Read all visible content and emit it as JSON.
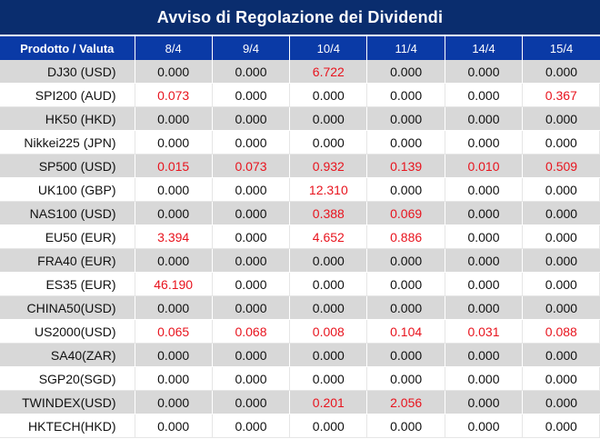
{
  "title": "Avviso di Regolazione dei Dividendi",
  "colors": {
    "title_bg": "#0a2d6e",
    "header_bg": "#0a3aa6",
    "row_alt_bg": "#d8d8d8",
    "positive_value": "#e8141e",
    "zero_value": "#111111"
  },
  "table": {
    "headers": [
      "Prodotto / Valuta",
      "8/4",
      "9/4",
      "10/4",
      "11/4",
      "14/4",
      "15/4"
    ],
    "rows": [
      {
        "product": "DJ30 (USD)",
        "values": [
          "0.000",
          "0.000",
          "6.722",
          "0.000",
          "0.000",
          "0.000"
        ]
      },
      {
        "product": "SPI200 (AUD)",
        "values": [
          "0.073",
          "0.000",
          "0.000",
          "0.000",
          "0.000",
          "0.367"
        ]
      },
      {
        "product": "HK50 (HKD)",
        "values": [
          "0.000",
          "0.000",
          "0.000",
          "0.000",
          "0.000",
          "0.000"
        ]
      },
      {
        "product": "Nikkei225 (JPN)",
        "values": [
          "0.000",
          "0.000",
          "0.000",
          "0.000",
          "0.000",
          "0.000"
        ]
      },
      {
        "product": "SP500 (USD)",
        "values": [
          "0.015",
          "0.073",
          "0.932",
          "0.139",
          "0.010",
          "0.509"
        ]
      },
      {
        "product": "UK100 (GBP)",
        "values": [
          "0.000",
          "0.000",
          "12.310",
          "0.000",
          "0.000",
          "0.000"
        ]
      },
      {
        "product": "NAS100 (USD)",
        "values": [
          "0.000",
          "0.000",
          "0.388",
          "0.069",
          "0.000",
          "0.000"
        ]
      },
      {
        "product": "EU50 (EUR)",
        "values": [
          "3.394",
          "0.000",
          "4.652",
          "0.886",
          "0.000",
          "0.000"
        ]
      },
      {
        "product": "FRA40 (EUR)",
        "values": [
          "0.000",
          "0.000",
          "0.000",
          "0.000",
          "0.000",
          "0.000"
        ]
      },
      {
        "product": "ES35 (EUR)",
        "values": [
          "46.190",
          "0.000",
          "0.000",
          "0.000",
          "0.000",
          "0.000"
        ]
      },
      {
        "product": "CHINA50(USD)",
        "values": [
          "0.000",
          "0.000",
          "0.000",
          "0.000",
          "0.000",
          "0.000"
        ]
      },
      {
        "product": "US2000(USD)",
        "values": [
          "0.065",
          "0.068",
          "0.008",
          "0.104",
          "0.031",
          "0.088"
        ]
      },
      {
        "product": "SA40(ZAR)",
        "values": [
          "0.000",
          "0.000",
          "0.000",
          "0.000",
          "0.000",
          "0.000"
        ]
      },
      {
        "product": "SGP20(SGD)",
        "values": [
          "0.000",
          "0.000",
          "0.000",
          "0.000",
          "0.000",
          "0.000"
        ]
      },
      {
        "product": "TWINDEX(USD)",
        "values": [
          "0.000",
          "0.000",
          "0.201",
          "2.056",
          "0.000",
          "0.000"
        ]
      },
      {
        "product": "HKTECH(HKD)",
        "values": [
          "0.000",
          "0.000",
          "0.000",
          "0.000",
          "0.000",
          "0.000"
        ]
      }
    ]
  }
}
